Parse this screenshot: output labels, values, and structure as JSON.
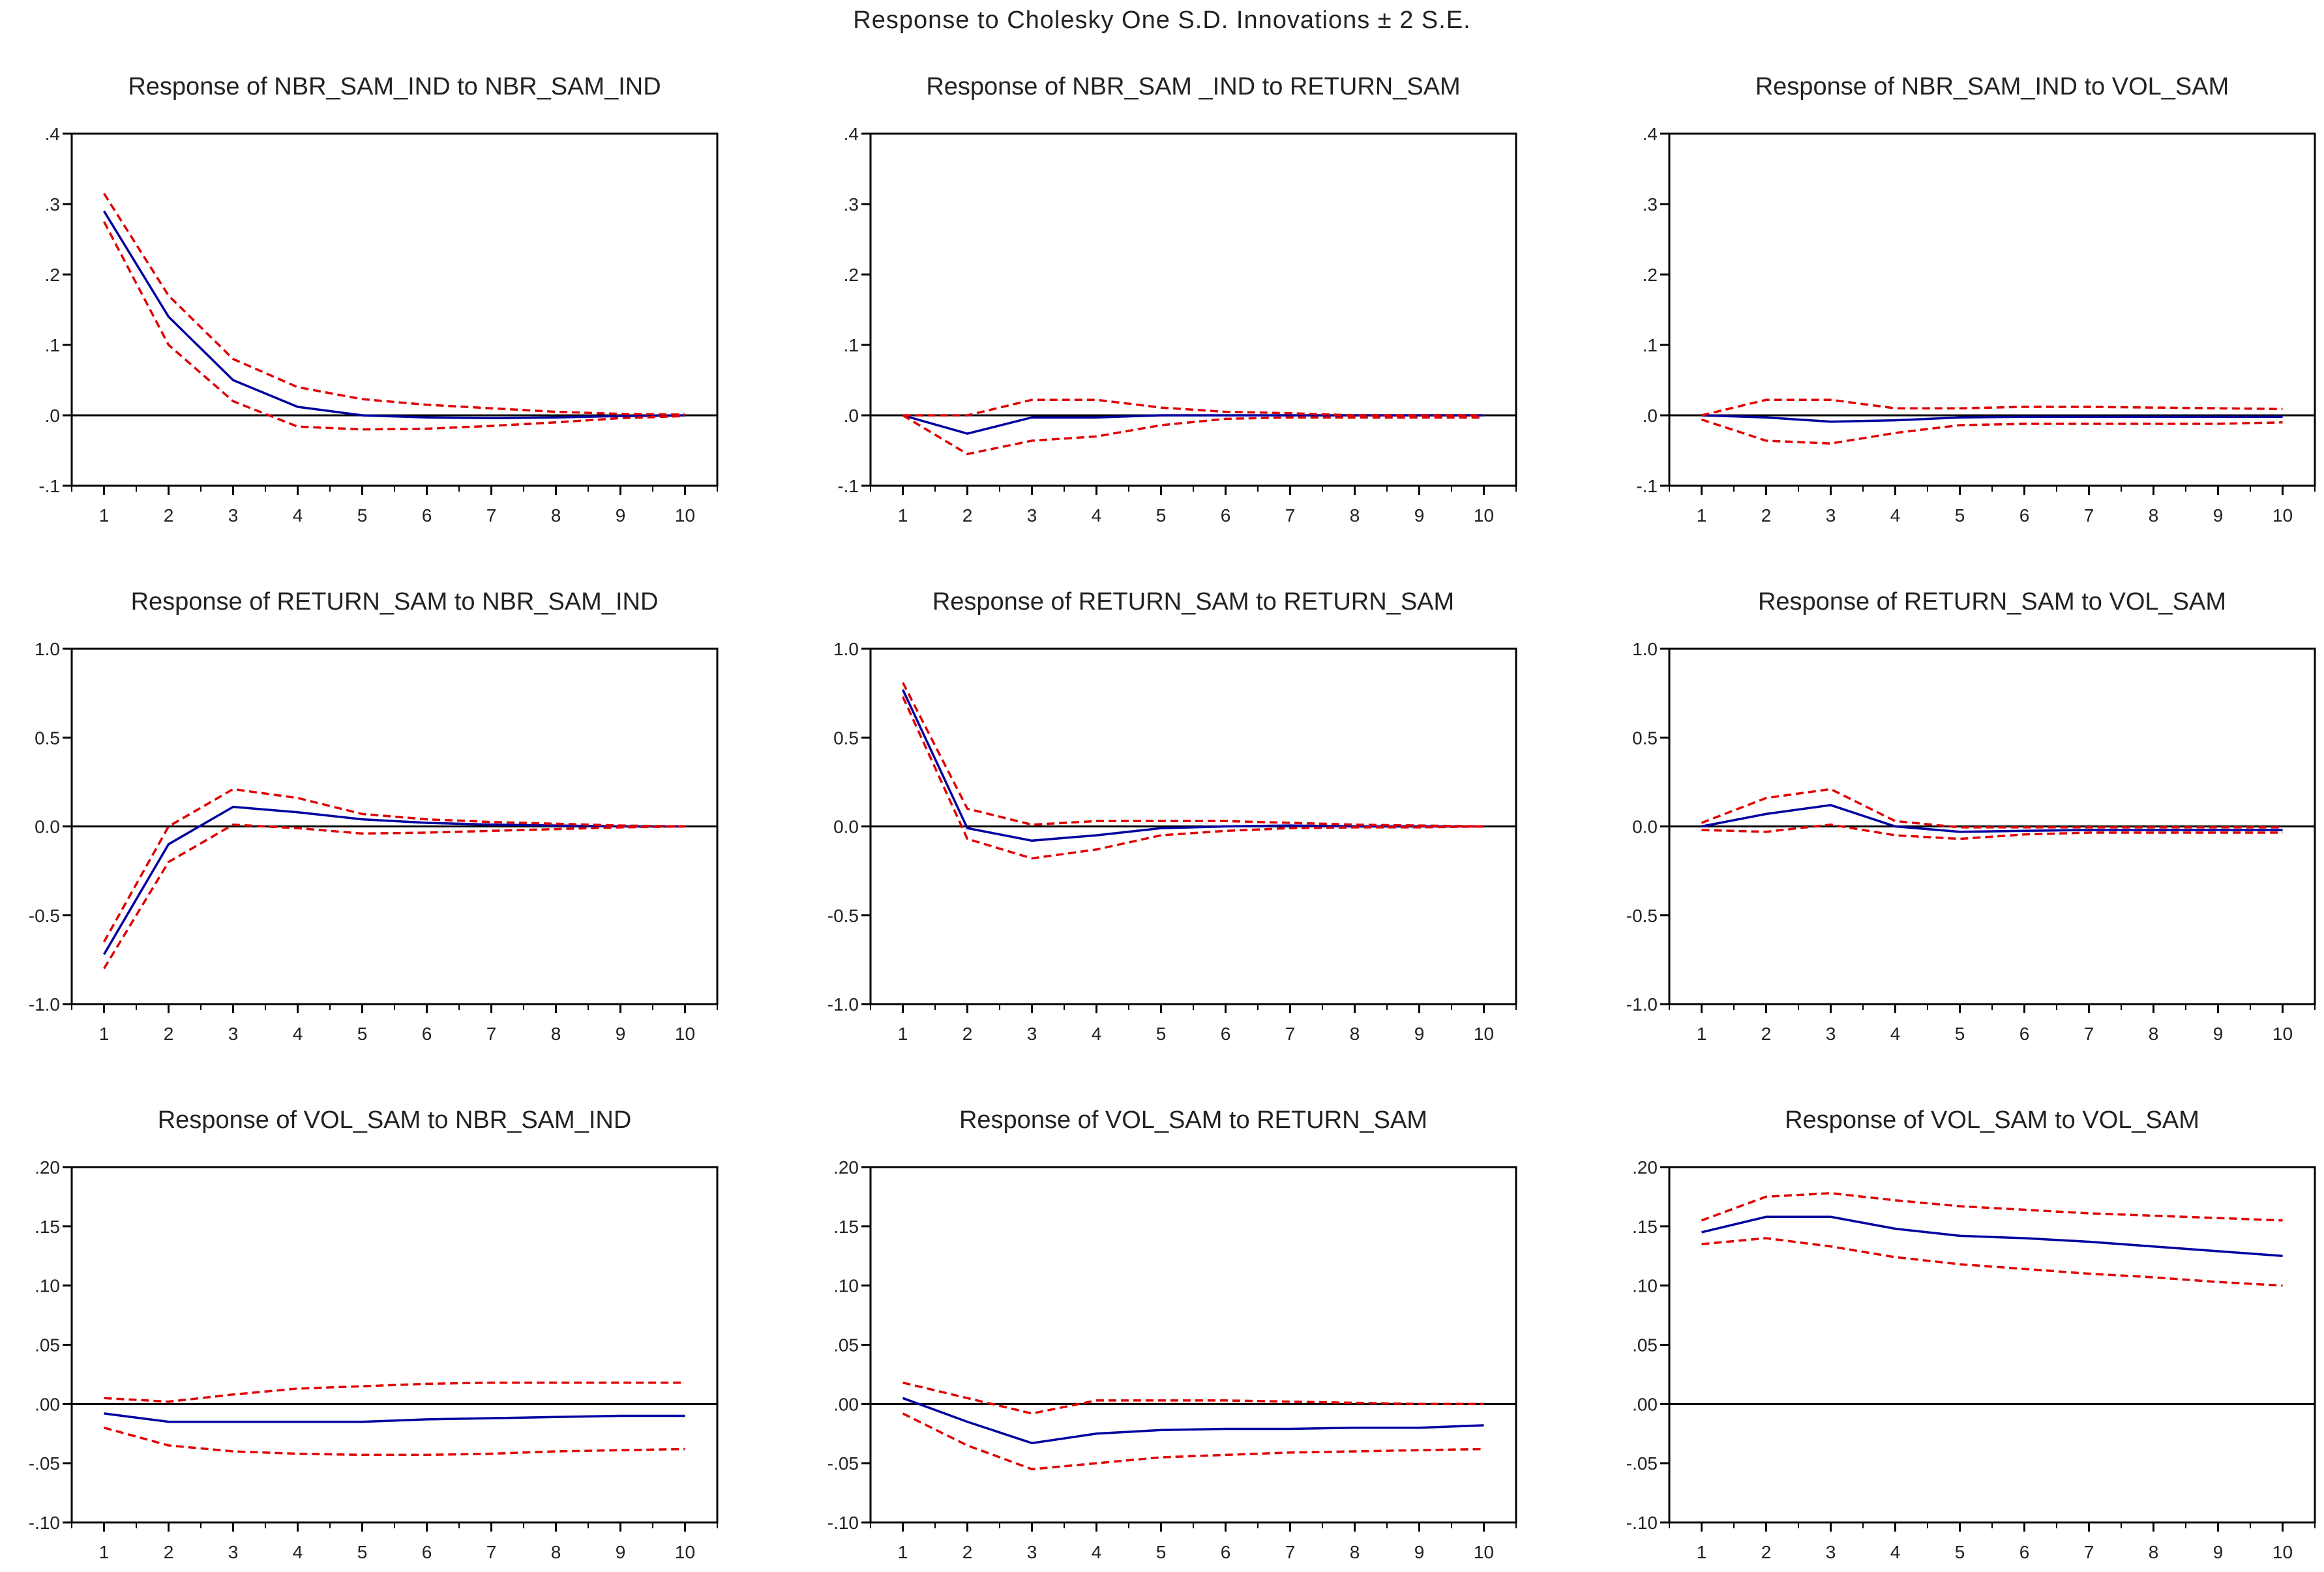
{
  "main_title": "Response to Cholesky One S.D. Innovations ± 2 S.E.",
  "colors": {
    "response": "#0000a0",
    "bands": "#e00000",
    "zero": "#000000",
    "frame": "#000000"
  },
  "chart_data": [
    {
      "type": "line",
      "title": "Response of NBR_SAM_IND to NBR_SAM_IND",
      "x": [
        1,
        2,
        3,
        4,
        5,
        6,
        7,
        8,
        9,
        10
      ],
      "ylim": [
        -0.1,
        0.4
      ],
      "yticks": [
        ".4",
        ".3",
        ".2",
        ".1",
        ".0",
        "-.1"
      ],
      "ytick_values": [
        0.4,
        0.3,
        0.2,
        0.1,
        0.0,
        -0.1
      ],
      "series": [
        {
          "values": [
            0.29,
            0.14,
            0.05,
            0.012,
            0.0,
            -0.003,
            -0.004,
            -0.003,
            -0.001,
            0.0
          ]
        },
        {
          "values": [
            0.315,
            0.17,
            0.08,
            0.04,
            0.023,
            0.015,
            0.01,
            0.005,
            0.002,
            0.001
          ]
        },
        {
          "values": [
            0.275,
            0.1,
            0.02,
            -0.016,
            -0.02,
            -0.019,
            -0.015,
            -0.01,
            -0.004,
            -0.001
          ]
        }
      ]
    },
    {
      "type": "line",
      "title": "Response of NBR_SAM _IND to RETURN_SAM",
      "x": [
        1,
        2,
        3,
        4,
        5,
        6,
        7,
        8,
        9,
        10
      ],
      "ylim": [
        -0.1,
        0.4
      ],
      "yticks": [
        ".4",
        ".3",
        ".2",
        ".1",
        ".0",
        "-.1"
      ],
      "ytick_values": [
        0.4,
        0.3,
        0.2,
        0.1,
        0.0,
        -0.1
      ],
      "series": [
        {
          "values": [
            0.0,
            -0.026,
            -0.003,
            -0.003,
            0.0,
            0.0,
            0.0,
            0.0,
            0.0,
            0.0
          ]
        },
        {
          "values": [
            0.0,
            0.0,
            0.022,
            0.022,
            0.011,
            0.005,
            0.003,
            0.0,
            0.0,
            0.0
          ]
        },
        {
          "values": [
            0.0,
            -0.055,
            -0.036,
            -0.03,
            -0.014,
            -0.005,
            -0.003,
            -0.003,
            -0.003,
            -0.003
          ]
        }
      ]
    },
    {
      "type": "line",
      "title": "Response of NBR_SAM_IND to VOL_SAM",
      "x": [
        1,
        2,
        3,
        4,
        5,
        6,
        7,
        8,
        9,
        10
      ],
      "ylim": [
        -0.1,
        0.4
      ],
      "yticks": [
        ".4",
        ".3",
        ".2",
        ".1",
        ".0",
        "-.1"
      ],
      "ytick_values": [
        0.4,
        0.3,
        0.2,
        0.1,
        0.0,
        -0.1
      ],
      "series": [
        {
          "values": [
            0.0,
            -0.003,
            -0.009,
            -0.007,
            -0.003,
            -0.002,
            -0.002,
            -0.002,
            -0.002,
            -0.002
          ]
        },
        {
          "values": [
            0.0,
            0.022,
            0.022,
            0.01,
            0.01,
            0.012,
            0.012,
            0.011,
            0.01,
            0.009
          ]
        },
        {
          "values": [
            -0.006,
            -0.036,
            -0.04,
            -0.025,
            -0.014,
            -0.012,
            -0.012,
            -0.012,
            -0.012,
            -0.01
          ]
        }
      ]
    },
    {
      "type": "line",
      "title": "Response of RETURN_SAM to NBR_SAM_IND",
      "x": [
        1,
        2,
        3,
        4,
        5,
        6,
        7,
        8,
        9,
        10
      ],
      "ylim": [
        -1.0,
        1.0
      ],
      "yticks": [
        "1.0",
        "0.5",
        "0.0",
        "-0.5",
        "-1.0"
      ],
      "ytick_values": [
        1.0,
        0.5,
        0.0,
        -0.5,
        -1.0
      ],
      "series": [
        {
          "values": [
            -0.72,
            -0.1,
            0.11,
            0.08,
            0.04,
            0.02,
            0.01,
            0.005,
            0.0,
            0.0
          ]
        },
        {
          "values": [
            -0.65,
            0.0,
            0.21,
            0.16,
            0.07,
            0.04,
            0.025,
            0.015,
            0.005,
            0.0
          ]
        },
        {
          "values": [
            -0.8,
            -0.2,
            0.01,
            -0.01,
            -0.04,
            -0.035,
            -0.025,
            -0.015,
            -0.005,
            0.0
          ]
        }
      ]
    },
    {
      "type": "line",
      "title": "Response of RETURN_SAM to RETURN_SAM",
      "x": [
        1,
        2,
        3,
        4,
        5,
        6,
        7,
        8,
        9,
        10
      ],
      "ylim": [
        -1.0,
        1.0
      ],
      "yticks": [
        "1.0",
        "0.5",
        "0.0",
        "-0.5",
        "-1.0"
      ],
      "ytick_values": [
        1.0,
        0.5,
        0.0,
        -0.5,
        -1.0
      ],
      "series": [
        {
          "values": [
            0.77,
            -0.01,
            -0.08,
            -0.05,
            -0.01,
            0.0,
            0.005,
            0.0,
            0.0,
            0.0
          ]
        },
        {
          "values": [
            0.81,
            0.1,
            0.01,
            0.03,
            0.03,
            0.03,
            0.02,
            0.01,
            0.005,
            0.0
          ]
        },
        {
          "values": [
            0.73,
            -0.07,
            -0.18,
            -0.13,
            -0.05,
            -0.025,
            -0.01,
            -0.005,
            -0.005,
            0.0
          ]
        }
      ]
    },
    {
      "type": "line",
      "title": "Response of RETURN_SAM to VOL_SAM",
      "x": [
        1,
        2,
        3,
        4,
        5,
        6,
        7,
        8,
        9,
        10
      ],
      "ylim": [
        -1.0,
        1.0
      ],
      "yticks": [
        "1.0",
        "0.5",
        "0.0",
        "-0.5",
        "-1.0"
      ],
      "ytick_values": [
        1.0,
        0.5,
        0.0,
        -0.5,
        -1.0
      ],
      "series": [
        {
          "values": [
            0.0,
            0.07,
            0.12,
            0.0,
            -0.03,
            -0.025,
            -0.02,
            -0.02,
            -0.02,
            -0.02
          ]
        },
        {
          "values": [
            0.02,
            0.16,
            0.21,
            0.03,
            -0.005,
            -0.005,
            -0.005,
            -0.005,
            -0.005,
            -0.005
          ]
        },
        {
          "values": [
            -0.02,
            -0.03,
            0.01,
            -0.05,
            -0.07,
            -0.045,
            -0.035,
            -0.035,
            -0.035,
            -0.035
          ]
        }
      ]
    },
    {
      "type": "line",
      "title": "Response of VOL_SAM to NBR_SAM_IND",
      "x": [
        1,
        2,
        3,
        4,
        5,
        6,
        7,
        8,
        9,
        10
      ],
      "ylim": [
        -0.1,
        0.2
      ],
      "yticks": [
        ".20",
        ".15",
        ".10",
        ".05",
        ".00",
        "-.05",
        "-.10"
      ],
      "ytick_values": [
        0.2,
        0.15,
        0.1,
        0.05,
        0.0,
        -0.05,
        -0.1
      ],
      "series": [
        {
          "values": [
            -0.008,
            -0.015,
            -0.015,
            -0.015,
            -0.015,
            -0.013,
            -0.012,
            -0.011,
            -0.01,
            -0.01
          ]
        },
        {
          "values": [
            0.005,
            0.002,
            0.008,
            0.013,
            0.015,
            0.017,
            0.018,
            0.018,
            0.018,
            0.018
          ]
        },
        {
          "values": [
            -0.02,
            -0.035,
            -0.04,
            -0.042,
            -0.043,
            -0.043,
            -0.042,
            -0.04,
            -0.039,
            -0.038
          ]
        }
      ]
    },
    {
      "type": "line",
      "title": "Response of VOL_SAM to RETURN_SAM",
      "x": [
        1,
        2,
        3,
        4,
        5,
        6,
        7,
        8,
        9,
        10
      ],
      "ylim": [
        -0.1,
        0.2
      ],
      "yticks": [
        ".20",
        ".15",
        ".10",
        ".05",
        ".00",
        "-.05",
        "-.10"
      ],
      "ytick_values": [
        0.2,
        0.15,
        0.1,
        0.05,
        0.0,
        -0.05,
        -0.1
      ],
      "series": [
        {
          "values": [
            0.005,
            -0.015,
            -0.033,
            -0.025,
            -0.022,
            -0.021,
            -0.021,
            -0.02,
            -0.02,
            -0.018
          ]
        },
        {
          "values": [
            0.018,
            0.005,
            -0.008,
            0.003,
            0.003,
            0.003,
            0.002,
            0.001,
            0.0,
            0.0
          ]
        },
        {
          "values": [
            -0.008,
            -0.035,
            -0.055,
            -0.05,
            -0.045,
            -0.043,
            -0.041,
            -0.04,
            -0.039,
            -0.038
          ]
        }
      ]
    },
    {
      "type": "line",
      "title": "Response of VOL_SAM to VOL_SAM",
      "x": [
        1,
        2,
        3,
        4,
        5,
        6,
        7,
        8,
        9,
        10
      ],
      "ylim": [
        -0.1,
        0.2
      ],
      "yticks": [
        ".20",
        ".15",
        ".10",
        ".05",
        ".00",
        "-.05",
        "-.10"
      ],
      "ytick_values": [
        0.2,
        0.15,
        0.1,
        0.05,
        0.0,
        -0.05,
        -0.1
      ],
      "series": [
        {
          "values": [
            0.145,
            0.158,
            0.158,
            0.148,
            0.142,
            0.14,
            0.137,
            0.133,
            0.129,
            0.125
          ]
        },
        {
          "values": [
            0.155,
            0.175,
            0.178,
            0.172,
            0.167,
            0.164,
            0.161,
            0.159,
            0.157,
            0.155
          ]
        },
        {
          "values": [
            0.135,
            0.14,
            0.133,
            0.124,
            0.118,
            0.114,
            0.11,
            0.107,
            0.103,
            0.1
          ]
        }
      ]
    }
  ]
}
